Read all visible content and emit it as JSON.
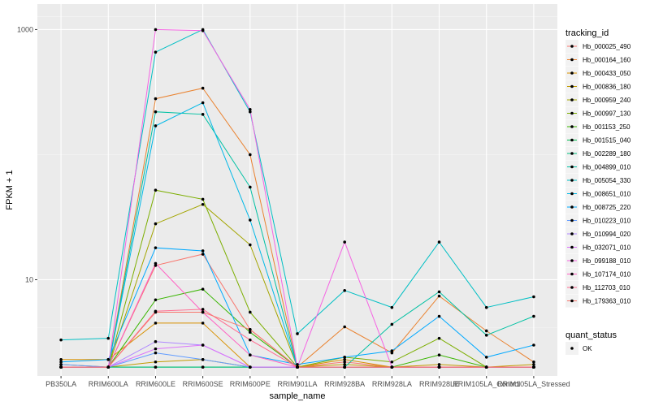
{
  "chart_data": {
    "type": "line",
    "xlabel": "sample_name",
    "ylabel": "FPKM + 1",
    "y_scale": "log10",
    "ylim": [
      1.7,
      1600
    ],
    "grid": true,
    "legend_placement": "right",
    "y_ticks": [
      {
        "value": 10,
        "label": "10"
      },
      {
        "value": 1000,
        "label": "1000"
      }
    ],
    "categories": [
      "PB350LA",
      "RRIM600LA",
      "RRIM600LE",
      "RRIM600SE",
      "RRIM600PE",
      "RRIM901LA",
      "RRIM928BA",
      "RRIM928LA",
      "RRIM928LE",
      "RRIM105LA_Control",
      "RRIM105LA_Stressed"
    ],
    "legend_title": "tracking_id",
    "series": [
      {
        "name": "Hb_000025_490",
        "color": "#F8766D",
        "values": [
          2.0,
          2.0,
          13.0,
          16.0,
          4.0,
          2.0,
          2.2,
          2.0,
          2.0,
          2.0,
          2.0
        ]
      },
      {
        "name": "Hb_000164_160",
        "color": "#EA8331",
        "values": [
          2.0,
          2.0,
          280,
          340,
          100,
          2.0,
          4.2,
          2.6,
          7.4,
          3.9,
          2.2
        ]
      },
      {
        "name": "Hb_000433_050",
        "color": "#D89000",
        "values": [
          2.3,
          2.3,
          4.5,
          4.5,
          2.0,
          2.0,
          2.3,
          2.0,
          2.0,
          2.0,
          2.0
        ]
      },
      {
        "name": "Hb_000836_180",
        "color": "#C09B00",
        "values": [
          2.1,
          2.0,
          2.2,
          2.3,
          2.0,
          2.0,
          2.1,
          2.0,
          2.1,
          2.0,
          2.1
        ]
      },
      {
        "name": "Hb_000959_240",
        "color": "#A3A500",
        "values": [
          2.0,
          2.0,
          28,
          40,
          19,
          2.0,
          2.0,
          2.0,
          2.0,
          2.0,
          2.0
        ]
      },
      {
        "name": "Hb_000997_130",
        "color": "#7CAE00",
        "values": [
          2.0,
          2.0,
          52,
          44,
          5.5,
          2.0,
          2.4,
          2.2,
          3.4,
          2.0,
          2.0
        ]
      },
      {
        "name": "Hb_001153_250",
        "color": "#39B600",
        "values": [
          2.0,
          2.0,
          6.9,
          8.4,
          3.8,
          2.0,
          2.0,
          2.0,
          2.5,
          2.0,
          2.0
        ]
      },
      {
        "name": "Hb_001515_040",
        "color": "#00BB4E",
        "values": [
          2.0,
          2.0,
          2.0,
          2.0,
          2.0,
          2.0,
          2.0,
          2.0,
          2.0,
          2.0,
          2.0
        ]
      },
      {
        "name": "Hb_002289_180",
        "color": "#00BF7D",
        "values": [
          2.0,
          2.0,
          2.0,
          2.0,
          2.0,
          2.0,
          2.0,
          2.0,
          2.0,
          2.0,
          2.0
        ]
      },
      {
        "name": "Hb_004899_010",
        "color": "#00C1A3",
        "values": [
          2.0,
          2.0,
          220,
          210,
          55,
          2.0,
          2.0,
          4.4,
          8.0,
          3.6,
          5.1
        ]
      },
      {
        "name": "Hb_005054_330",
        "color": "#00BFC4",
        "values": [
          3.3,
          3.4,
          660,
          1000,
          220,
          3.7,
          8.2,
          6.0,
          20.0,
          6.0,
          7.3
        ]
      },
      {
        "name": "Hb_008651_010",
        "color": "#00B8E7",
        "values": [
          2.0,
          2.0,
          170,
          260,
          30,
          2.0,
          2.0,
          2.0,
          2.0,
          2.0,
          2.0
        ]
      },
      {
        "name": "Hb_008725_220",
        "color": "#00A9FF",
        "values": [
          2.2,
          2.3,
          18,
          17,
          2.5,
          2.1,
          2.4,
          2.7,
          5.1,
          2.4,
          3.0
        ]
      },
      {
        "name": "Hb_010223_010",
        "color": "#619CFF",
        "values": [
          2.1,
          2.0,
          2.6,
          2.3,
          2.0,
          2.0,
          2.0,
          2.0,
          2.0,
          2.0,
          2.0
        ]
      },
      {
        "name": "Hb_010994_020",
        "color": "#AE87FF",
        "values": [
          2.0,
          2.0,
          3.2,
          3.0,
          2.0,
          2.0,
          2.0,
          2.0,
          2.0,
          2.0,
          2.0
        ]
      },
      {
        "name": "Hb_032071_010",
        "color": "#DB72FB",
        "values": [
          2.0,
          2.0,
          2.8,
          3.0,
          2.0,
          2.0,
          2.0,
          2.0,
          2.0,
          2.0,
          2.0
        ]
      },
      {
        "name": "Hb_099188_010",
        "color": "#F564E3",
        "values": [
          2.0,
          2.0,
          1000,
          980,
          230,
          2.0,
          20,
          2.0,
          2.0,
          2.0,
          2.0
        ]
      },
      {
        "name": "Hb_107174_010",
        "color": "#FF61C3",
        "values": [
          2.0,
          2.0,
          13.5,
          5.5,
          2.5,
          2.0,
          2.0,
          2.0,
          2.0,
          2.0,
          2.0
        ]
      },
      {
        "name": "Hb_112703_010",
        "color": "#FF6C91",
        "values": [
          2.0,
          2.0,
          5.6,
          5.8,
          3.3,
          2.0,
          2.0,
          2.0,
          2.0,
          2.0,
          2.0
        ]
      },
      {
        "name": "Hb_179363_010",
        "color": "#F8766D",
        "values": [
          2.0,
          2.0,
          5.5,
          5.5,
          4.0,
          2.0,
          2.0,
          2.0,
          2.0,
          2.0,
          2.0
        ]
      }
    ],
    "shape_legend": {
      "title": "quant_status",
      "items": [
        {
          "label": "OK"
        }
      ]
    }
  }
}
